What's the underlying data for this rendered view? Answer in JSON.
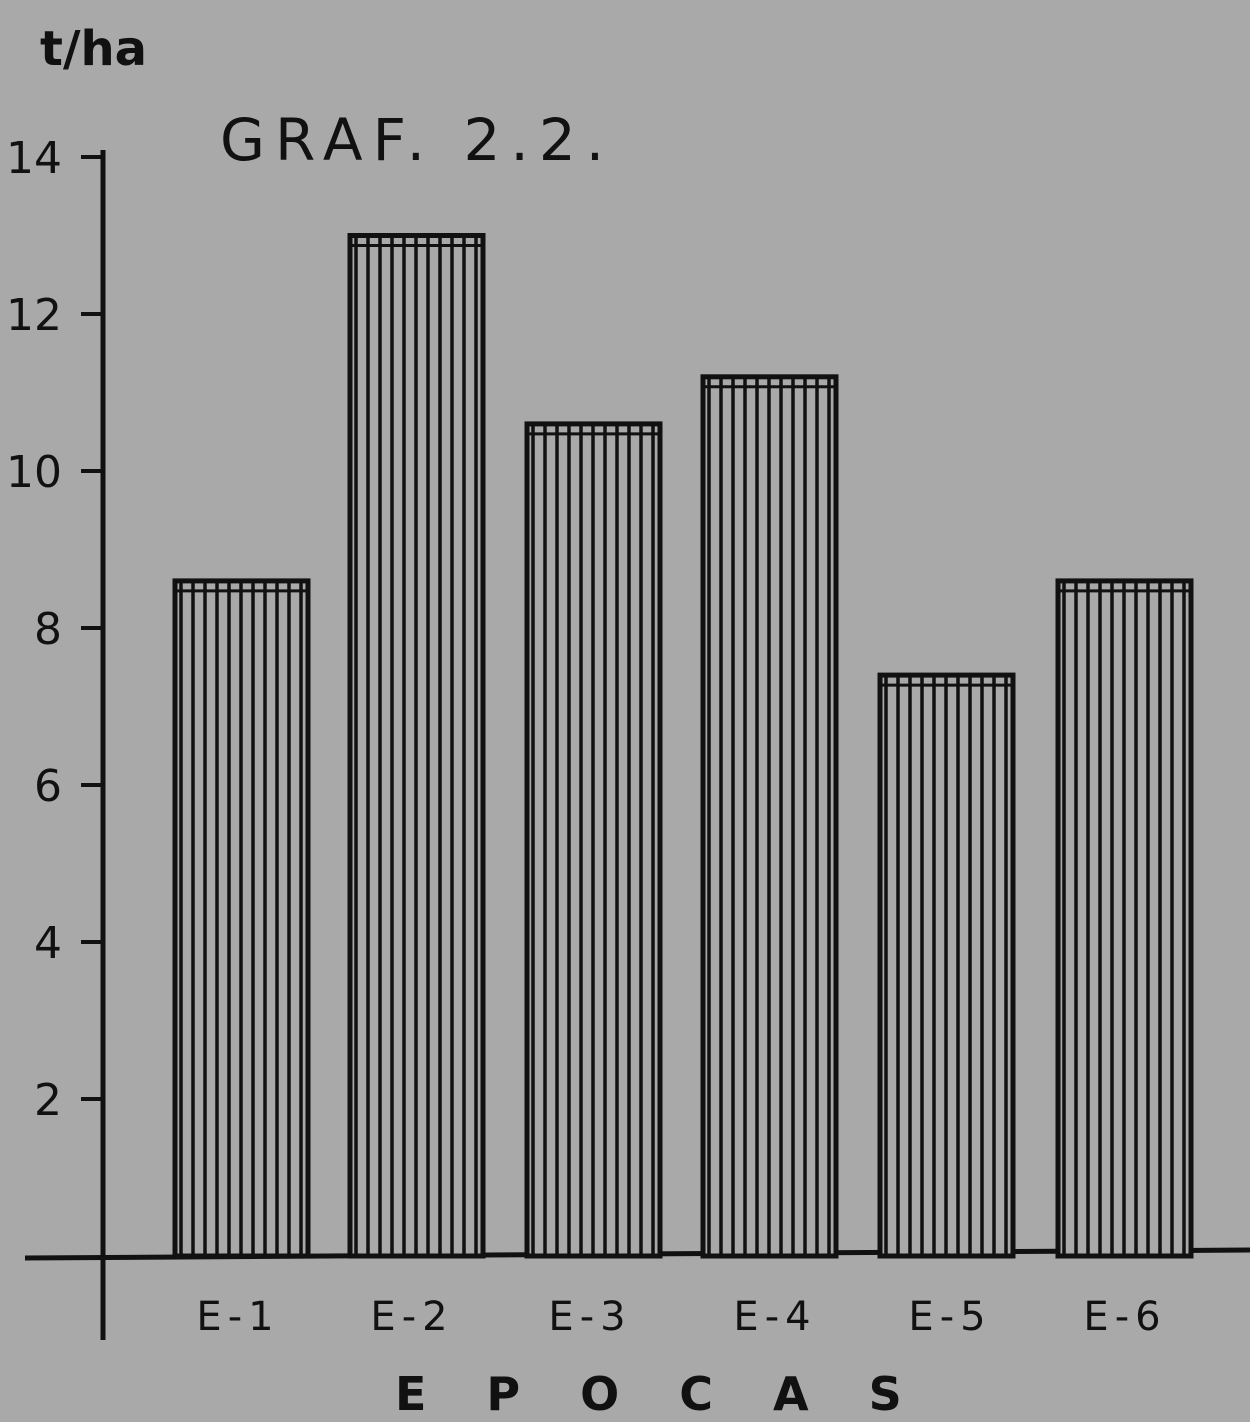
{
  "chart_data": {
    "type": "bar",
    "title": "GRAF. 2.2.",
    "ylabel": "t/ha",
    "xlabel": "EPOCAS",
    "categories": [
      "E-1",
      "E-2",
      "E-3",
      "E-4",
      "E-5",
      "E-6"
    ],
    "values": [
      8.6,
      13.0,
      10.6,
      11.2,
      7.4,
      8.6
    ],
    "ylim": [
      0,
      14
    ],
    "yticks": [
      "2",
      "4",
      "6",
      "8",
      "10",
      "12",
      "14"
    ],
    "grid": false,
    "bar_style": "vertical hatching",
    "colors": {
      "background": "#a9a9a9",
      "ink": "#111111",
      "bar_fill": "#a9a9a9"
    }
  }
}
